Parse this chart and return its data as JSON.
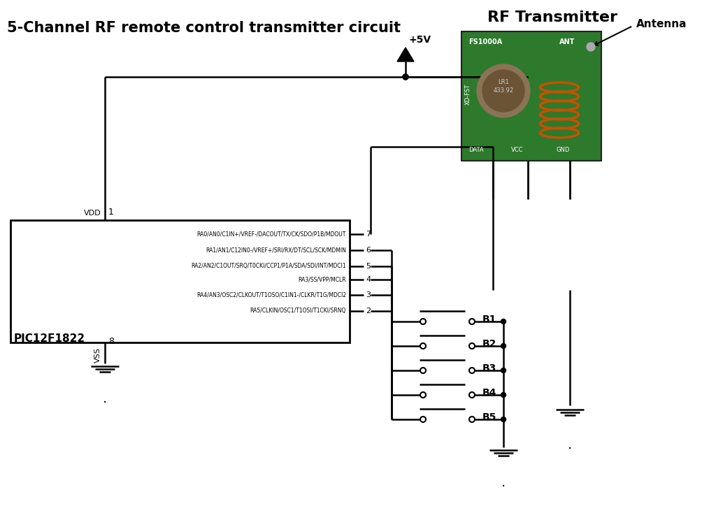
{
  "title": "5-Channel RF remote control transmitter circuit",
  "rf_title": "RF Transmitter",
  "antenna_label": "Antenna",
  "ic_label": "PIC12F1822",
  "pin_labels": [
    "RA0/AN0/C1IN+/VREF-/DACOUT/TX/CK/SDO/P1B/MDOUT",
    "RA1/AN1/C12IN0-/VREF+/SRI/RX/DT/SCL/SCK/MDMIN",
    "RA2/AN2/C1OUT/SRQ/T0CKI/CCP1/P1A/SDA/SDI/INT/MDCI1",
    "RA3/SS/VPP/MCLR",
    "RA4/AN3/OSC2/CLKOUT/T1OSO/C1IN1-/CLKR/T1G/MDCI2",
    "RA5/CLKIN/OSC1/T1OSI/T1CKI/SRNQ"
  ],
  "pin_numbers_right": [
    "7",
    "6",
    "5",
    "4",
    "3",
    "2"
  ],
  "vdd_label": "VDD",
  "vss_label": "VSS",
  "pin1_label": "1",
  "pin8_label": "8",
  "vcc_label": "+5V",
  "gnd_label": "GND",
  "button_labels": [
    "B1",
    "B2",
    "B3",
    "B4",
    "B5"
  ],
  "bg_color": "#ffffff",
  "line_color": "#000000"
}
